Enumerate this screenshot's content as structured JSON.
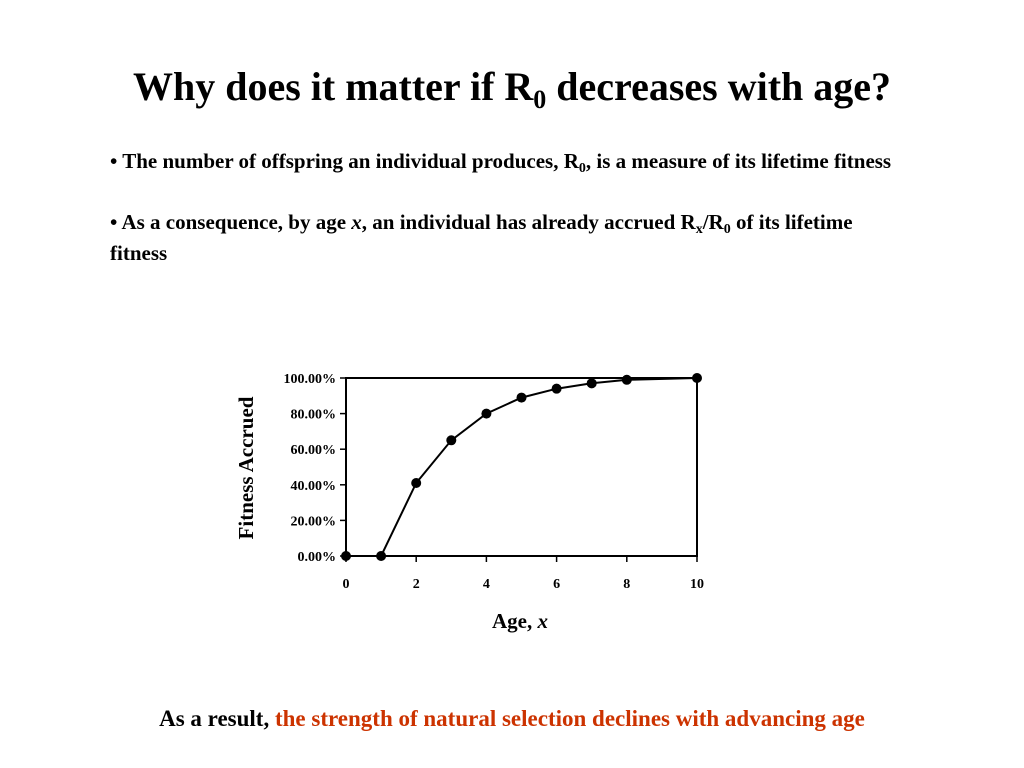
{
  "title": {
    "prefix": "Why does it matter if R",
    "subscript": "0",
    "suffix": " decreases with age?"
  },
  "bullets": [
    {
      "lead": "• The number of offspring an individual produces, R",
      "sub": "0",
      "tail": ", is a measure of its lifetime fitness"
    },
    {
      "lead": "• As a consequence, by age ",
      "var": "x",
      "mid": ", an individual has already accrued R",
      "sub1": "x",
      "slash": "/R",
      "sub2": "0",
      "tail": " of its lifetime fitness"
    }
  ],
  "chart_data": {
    "type": "line",
    "x": [
      0,
      1,
      2,
      3,
      4,
      5,
      6,
      7,
      8,
      10
    ],
    "values": [
      0,
      0,
      41,
      65,
      80,
      89,
      94,
      97,
      99,
      100
    ],
    "ylabel": "Fitness Accrued",
    "xlabel_text": "Age, ",
    "xlabel_var": "x",
    "ylim": [
      0,
      100
    ],
    "xlim": [
      0,
      10
    ],
    "yticks": [
      "0.00%",
      "20.00%",
      "40.00%",
      "60.00%",
      "80.00%",
      "100.00%"
    ],
    "xticks": [
      "0",
      "2",
      "4",
      "6",
      "8",
      "10"
    ],
    "marker": "filled-circle",
    "grid": false
  },
  "footer": {
    "lead": "As a result, ",
    "emphasis": "the strength of natural selection declines with advancing age",
    "emphasis_color": "#cc3300"
  }
}
